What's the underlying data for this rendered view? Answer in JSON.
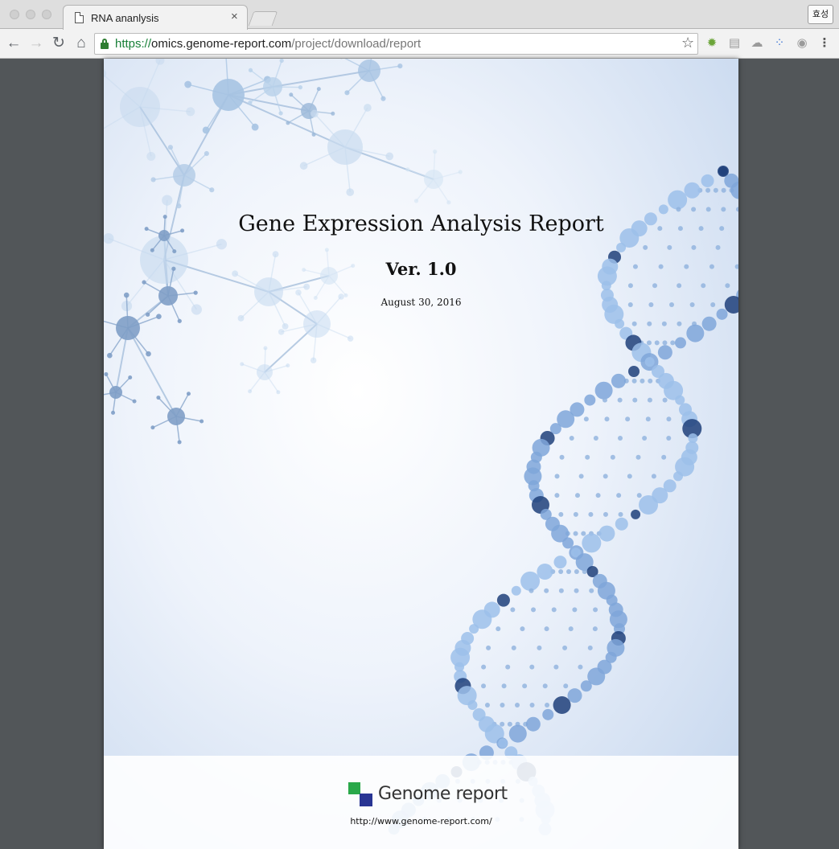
{
  "browser": {
    "tab": {
      "title": "RNA ananlysis",
      "close_glyph": "×",
      "icon": "page-icon"
    },
    "profile_label": "효성",
    "nav": {
      "back_glyph": "←",
      "forward_glyph": "→",
      "reload_glyph": "↻",
      "home_glyph": "⌂"
    },
    "address": {
      "scheme": "https://",
      "host": "omics.genome-report.com",
      "path": "/project/download/report",
      "secure_icon": "lock-icon",
      "bookmark_glyph": "☆"
    },
    "extensions": [
      {
        "name": "bug-extension-icon",
        "glyph": "✹"
      },
      {
        "name": "grid-extension-icon",
        "glyph": "▤"
      },
      {
        "name": "drive-extension-icon",
        "glyph": "☁"
      },
      {
        "name": "dots-extension-icon",
        "glyph": "⁘"
      },
      {
        "name": "camera-extension-icon",
        "glyph": "◉"
      },
      {
        "name": "menu-icon",
        "glyph": "⋮"
      }
    ]
  },
  "report": {
    "title": "Gene Expression Analysis Report",
    "version": "Ver. 1.0",
    "date": "August 30, 2016",
    "brand": "Genome report",
    "website": "http://www.genome-report.com/"
  },
  "colors": {
    "logo_green": "#2aa84a",
    "logo_blue": "#283593",
    "secure_green": "#188038",
    "viewer_background": "#525659"
  }
}
